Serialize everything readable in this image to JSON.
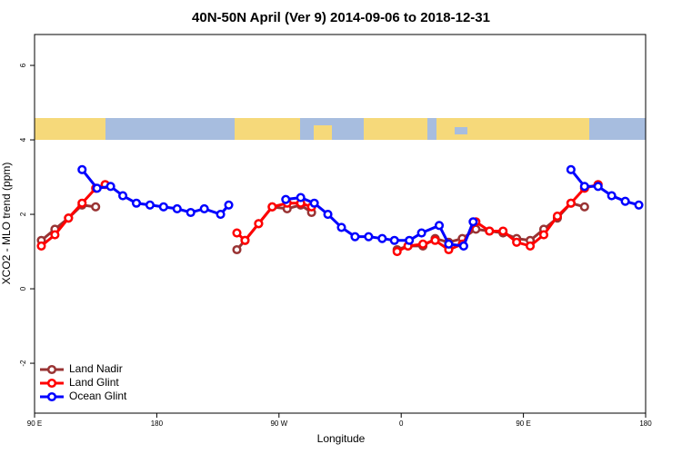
{
  "chart_data": {
    "type": "line",
    "title": "40N-50N April (Ver 9)   2014-09-06 to 2018-12-31",
    "x_label": "Longitude",
    "y_label": "XCO2 - MLO trend (ppm)",
    "xlim": [
      90,
      540
    ],
    "ylim": [
      -3.34,
      6.83
    ],
    "xticks": [
      {
        "value": 90,
        "label": "90 E"
      },
      180,
      {
        "value": 270,
        "label": "90 W"
      },
      {
        "value": 360,
        "label": "0"
      },
      {
        "value": 450,
        "label": "90 E"
      },
      {
        "value": 540,
        "label": "180"
      }
    ],
    "yticks": [
      -2,
      0,
      2,
      4,
      6
    ],
    "legend": "bottom-left",
    "series": [
      {
        "name": "Land Nadir",
        "color": "#993333",
        "x": [
          95,
          105,
          115,
          125,
          135,
          null,
          239,
          245,
          255,
          265,
          276,
          286,
          294,
          null,
          357,
          365,
          376,
          385,
          395,
          405,
          415,
          425,
          435,
          445,
          455,
          465,
          475,
          485,
          495
        ],
        "values": [
          1.3,
          1.6,
          1.9,
          2.25,
          2.2,
          null,
          1.05,
          1.3,
          1.75,
          2.2,
          2.15,
          2.25,
          2.05,
          null,
          1.05,
          1.15,
          1.15,
          1.35,
          1.25,
          1.35,
          1.6,
          1.55,
          1.5,
          1.35,
          1.3,
          1.6,
          1.9,
          2.3,
          2.2
        ]
      },
      {
        "name": "Land Glint",
        "color": "#ff0000",
        "x": [
          95,
          105,
          115,
          125,
          135,
          142,
          null,
          239,
          245,
          255,
          265,
          276,
          286,
          294,
          null,
          357,
          365,
          376,
          385,
          395,
          405,
          415,
          425,
          435,
          445,
          455,
          465,
          475,
          485,
          495,
          505
        ],
        "values": [
          1.15,
          1.45,
          1.9,
          2.3,
          2.7,
          2.8,
          null,
          1.5,
          1.3,
          1.75,
          2.2,
          2.3,
          2.3,
          2.2,
          null,
          1.0,
          1.15,
          1.2,
          1.3,
          1.05,
          1.2,
          1.8,
          1.55,
          1.55,
          1.25,
          1.15,
          1.45,
          1.95,
          2.3,
          2.7,
          2.8
        ]
      },
      {
        "name": "Ocean Glint",
        "color": "#0000ff",
        "x": [
          125,
          136,
          146,
          155,
          165,
          175,
          185,
          195,
          205,
          215,
          227,
          233,
          null,
          275,
          286,
          296,
          306,
          316,
          326,
          336,
          346,
          355,
          366,
          375,
          388,
          395,
          406,
          413,
          null,
          485,
          495,
          505,
          515,
          525,
          535
        ],
        "values": [
          3.2,
          2.7,
          2.75,
          2.5,
          2.3,
          2.25,
          2.2,
          2.15,
          2.05,
          2.15,
          2.0,
          2.25,
          null,
          2.4,
          2.45,
          2.3,
          2.0,
          1.65,
          1.4,
          1.4,
          1.35,
          1.3,
          1.3,
          1.5,
          1.7,
          1.2,
          1.15,
          1.8,
          null,
          3.2,
          2.75,
          2.75,
          2.5,
          2.35,
          2.25
        ]
      }
    ]
  }
}
